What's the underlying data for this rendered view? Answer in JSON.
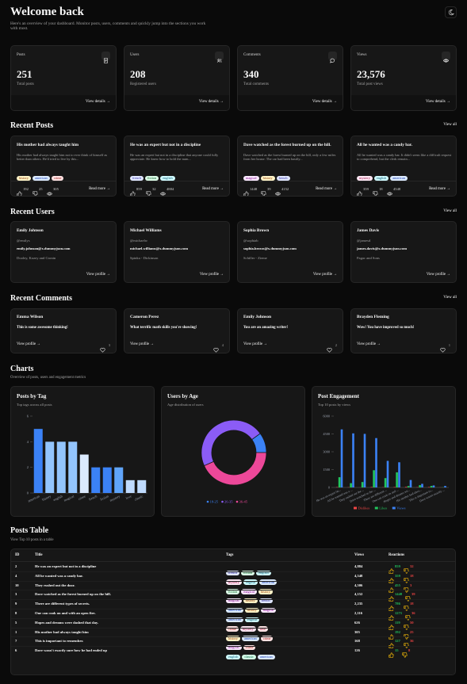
{
  "header": {
    "title": "Welcome back",
    "subtitle": "Here's an overview of your dashboard. Monitor posts, users, comments and quickly jump into the sections you work with most."
  },
  "stats": [
    {
      "label": "Posts",
      "value": "251",
      "caption": "Total posts",
      "link": "View details →"
    },
    {
      "label": "Users",
      "value": "208",
      "caption": "Registered users",
      "link": "View details →"
    },
    {
      "label": "Comments",
      "value": "340",
      "caption": "Total comments",
      "link": "View details →"
    },
    {
      "label": "Views",
      "value": "23,576",
      "caption": "Total post views",
      "link": "View details →"
    }
  ],
  "recent_posts": {
    "title": "Recent Posts",
    "link": "View all",
    "items": [
      {
        "title": "His mother had always taught him",
        "body": "His mother had always taught him not to ever think of himself as better than others. He'd tried to live by this...",
        "tags": [
          "history",
          "american",
          "crime"
        ],
        "likes": 192,
        "dislikes": 25,
        "views": 305,
        "link": "Read more →"
      },
      {
        "title": "He was an expert but not in a discipline",
        "body": "He was an expert but not in a discipline that anyone could fully appreciate. He knew how to hold the num...",
        "tags": [
          "french",
          "fiction",
          "english"
        ],
        "likes": 859,
        "dislikes": 32,
        "views": 4884,
        "link": "Read more →"
      },
      {
        "title": "Dave watched as the forest burned up on the hill.",
        "body": "Dave watched as the forest burned up on the hill, only a few miles from her house. The car had been hastily...",
        "tags": [
          "magical",
          "history",
          "french"
        ],
        "likes": 1448,
        "dislikes": 39,
        "views": 4152,
        "link": "Read more →"
      },
      {
        "title": "All he wanted was a candy bar.",
        "body": "All he wanted was a candy bar. It didn't seem like a difficult request to comprehend, but the clerk remain...",
        "tags": [
          "mystery",
          "english",
          "american"
        ],
        "likes": 359,
        "dislikes": 18,
        "views": 4548,
        "link": "Read more →"
      }
    ]
  },
  "recent_users": {
    "title": "Recent Users",
    "link": "View all",
    "items": [
      {
        "name": "Emily Johnson",
        "username": "@emilys",
        "email": "emily.johnson@x.dummyjson.com",
        "company": "Dooley, Kozey and Cronin",
        "link": "View profile →"
      },
      {
        "name": "Michael Williams",
        "username": "@michaelw",
        "email": "michael.williams@x.dummyjson.com",
        "company": "Spinka - Dickinson",
        "link": "View profile →"
      },
      {
        "name": "Sophia Brown",
        "username": "@sophiab",
        "email": "sophia.brown@x.dummyjson.com",
        "company": "Schiller - Zieme",
        "link": "View profile →"
      },
      {
        "name": "James Davis",
        "username": "@jamesd",
        "email": "james.davis@x.dummyjson.com",
        "company": "Pagac and Sons",
        "link": "View profile →"
      }
    ]
  },
  "recent_comments": {
    "title": "Recent Comments",
    "link": "View all",
    "items": [
      {
        "user": "Emma Wilson",
        "body": "This is some awesome thinking!",
        "likes": 3,
        "link": "View profile →"
      },
      {
        "user": "Cameron Perez",
        "body": "What terrific math skills you're showing!",
        "likes": 4,
        "link": "View profile →"
      },
      {
        "user": "Emily Johnson",
        "body": "You are an amazing writer!",
        "likes": 2,
        "link": "View profile →"
      },
      {
        "user": "Brayden Fleming",
        "body": "Wow! You have improved so much!",
        "likes": 1,
        "link": "View profile →"
      }
    ]
  },
  "charts_section": {
    "title": "Charts",
    "subtitle": "Overview of posts, users and engagement metrics"
  },
  "chart_data": [
    {
      "type": "bar",
      "title": "Posts by Tag",
      "subtitle": "Top tags across all posts",
      "categories": [
        "american",
        "history",
        "english",
        "magical",
        "crime",
        "french",
        "fiction",
        "mystery",
        "love",
        "classic"
      ],
      "values": [
        5,
        4,
        4,
        4,
        3,
        2,
        2,
        2,
        1,
        1
      ],
      "colors": [
        "#3b82f6",
        "#93c5fd",
        "#93c5fd",
        "#93c5fd",
        "#dbeafe",
        "#3b82f6",
        "#3b82f6",
        "#60a5fa",
        "#bfdbfe",
        "#bfdbfe"
      ],
      "ylim": [
        0,
        6
      ],
      "yticks": [
        0,
        2,
        4,
        6
      ]
    },
    {
      "type": "pie",
      "title": "Users by Age",
      "subtitle": "Age distribution of users",
      "categories": [
        "18-25",
        "26-35",
        "36-45"
      ],
      "values": [
        3,
        14,
        13
      ],
      "colors": [
        "#3b82f6",
        "#8b5cf6",
        "#ec4899"
      ]
    },
    {
      "type": "grouped_bar",
      "title": "Post Engagement",
      "subtitle": "Top 10 posts by views",
      "categories": [
        "He was an expert bu...",
        "All he wanted was a ...",
        "They rushed out the ...",
        "Dave watched as the ...",
        "There are different ...",
        "One can cook on and ...",
        "Hopes and dreams we...",
        "His mother had alwa...",
        "This is important to...",
        "Dave wasn't exactly ..."
      ],
      "series": [
        {
          "name": "Dislikes",
          "color": "#ef4444",
          "values": [
            32,
            18,
            3,
            39,
            18,
            36,
            50,
            25,
            36,
            8
          ]
        },
        {
          "name": "Likes",
          "color": "#22c55e",
          "values": [
            859,
            359,
            455,
            1448,
            786,
            1271,
            119,
            192,
            127,
            15
          ]
        },
        {
          "name": "Views",
          "color": "#3b82f6",
          "values": [
            4884,
            4548,
            4506,
            4152,
            2235,
            2116,
            626,
            305,
            168,
            126
          ]
        }
      ],
      "ylim": [
        0,
        6000
      ],
      "yticks": [
        0,
        1500,
        3000,
        4500,
        6000
      ]
    }
  ],
  "posts_table": {
    "title": "Posts Table",
    "subtitle": "View Top 10 posts in a table",
    "columns": [
      "ID",
      "Title",
      "Tags",
      "Views",
      "Reactions"
    ],
    "rows": [
      {
        "id": 2,
        "title": "He was an expert but not in a discipline",
        "tags": [
          "french",
          "fiction",
          "english"
        ],
        "views": "4,884",
        "likes": 859,
        "dislikes": 32
      },
      {
        "id": 4,
        "title": "All he wanted was a candy bar.",
        "tags": [
          "mystery",
          "english",
          "american"
        ],
        "views": "4,548",
        "likes": 359,
        "dislikes": 18
      },
      {
        "id": 10,
        "title": "They rushed out the door.",
        "tags": [
          "fiction",
          "magical",
          "history"
        ],
        "views": "4,506",
        "likes": 455,
        "dislikes": 3
      },
      {
        "id": 3,
        "title": "Dave watched as the forest burned up on the hill.",
        "tags": [
          "magical",
          "history",
          "french"
        ],
        "views": "4,152",
        "likes": 1448,
        "dislikes": 39
      },
      {
        "id": 9,
        "title": "There are different types of secrets.",
        "tags": [
          "american",
          "history",
          "magical"
        ],
        "views": "2,235",
        "likes": 786,
        "dislikes": 18
      },
      {
        "id": 8,
        "title": "One can cook on and with an open fire.",
        "tags": [
          "american",
          "english"
        ],
        "views": "2,116",
        "likes": 1271,
        "dislikes": 36
      },
      {
        "id": 5,
        "title": "Hopes and dreams were dashed that day.",
        "tags": [
          "crime",
          "mystery",
          "love"
        ],
        "views": "626",
        "likes": 119,
        "dislikes": 50
      },
      {
        "id": 1,
        "title": "His mother had always taught him",
        "tags": [
          "history",
          "american",
          "crime"
        ],
        "views": "305",
        "likes": 192,
        "dislikes": 25
      },
      {
        "id": 7,
        "title": "This is important to remember.",
        "tags": [
          "magical",
          "crime"
        ],
        "views": "168",
        "likes": 127,
        "dislikes": 36
      },
      {
        "id": 6,
        "title": "Dave wasn't exactly sure how he had ended up",
        "tags": [
          "english",
          "classic",
          "american"
        ],
        "views": "126",
        "likes": 15,
        "dislikes": 8
      }
    ]
  }
}
